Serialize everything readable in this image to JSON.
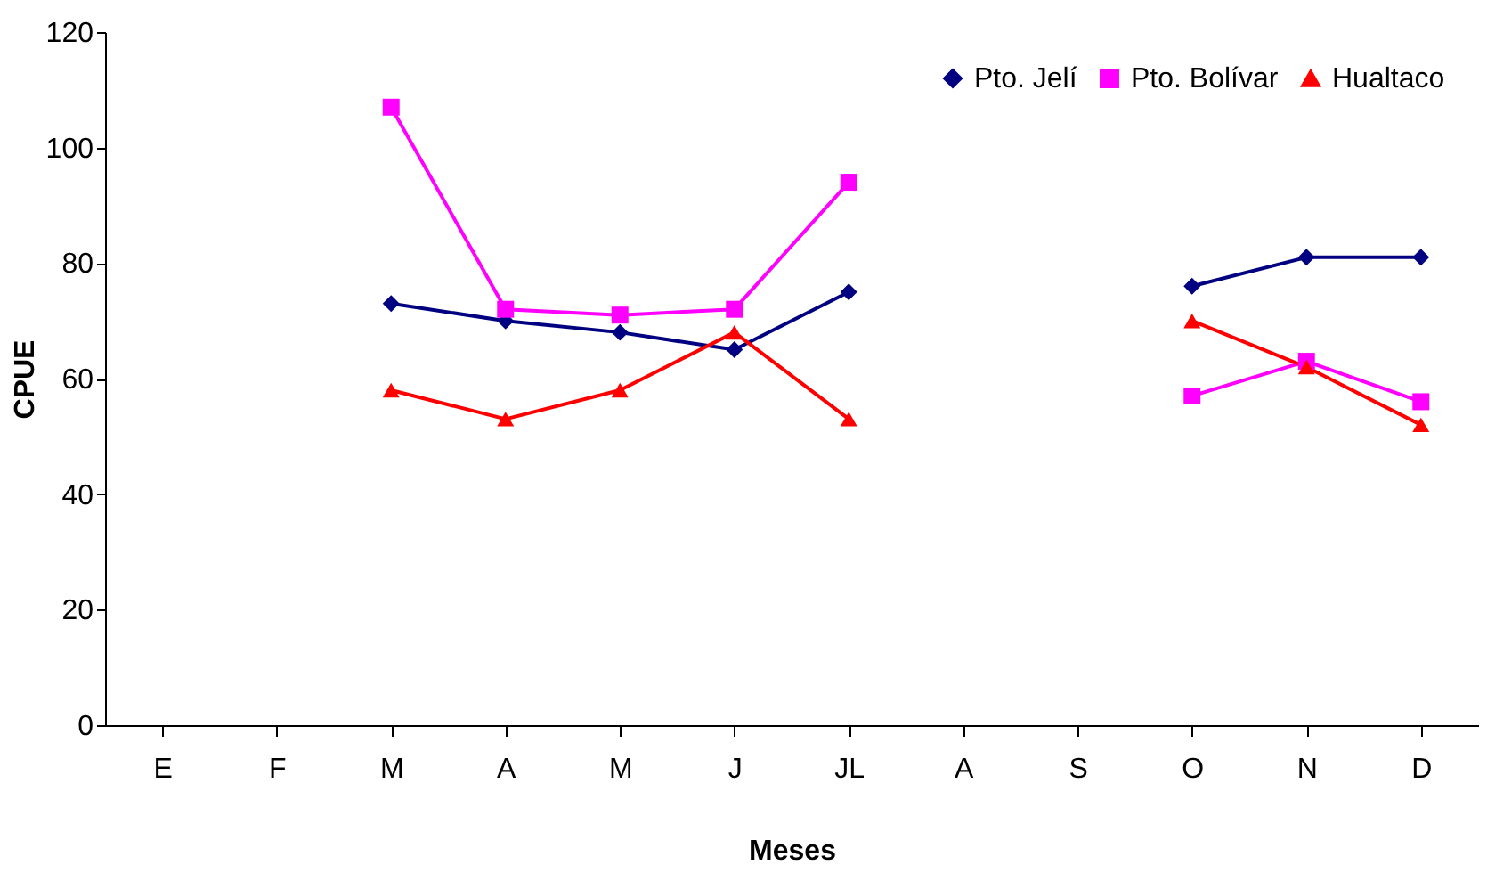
{
  "chart_data": {
    "type": "line",
    "xlabel": "Meses",
    "ylabel": "CPUE",
    "categories": [
      "E",
      "F",
      "M",
      "A",
      "M",
      "J",
      "JL",
      "A",
      "S",
      "O",
      "N",
      "D"
    ],
    "series": [
      {
        "name": "Pto. Jelí",
        "color": "#000080",
        "marker": "diamond",
        "values": [
          null,
          null,
          73,
          70,
          68,
          65,
          75,
          null,
          null,
          76,
          81,
          81
        ]
      },
      {
        "name": "Pto. Bolívar",
        "color": "#ff00ff",
        "marker": "square",
        "values": [
          null,
          null,
          107,
          72,
          71,
          72,
          94,
          null,
          null,
          57,
          63,
          56
        ]
      },
      {
        "name": "Hualtaco",
        "color": "#ff0000",
        "marker": "triangle",
        "values": [
          null,
          null,
          58,
          53,
          58,
          68,
          53,
          null,
          null,
          70,
          62,
          52
        ]
      }
    ],
    "ylim": [
      0,
      120
    ],
    "yticks": [
      0,
      20,
      40,
      60,
      80,
      100,
      120
    ],
    "grid": false,
    "legend": "top right",
    "line_style": "solid"
  }
}
